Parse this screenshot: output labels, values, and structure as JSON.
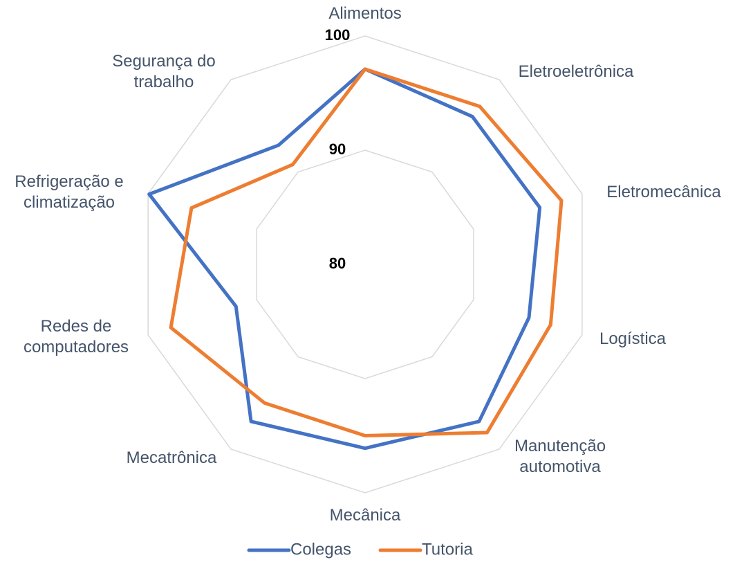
{
  "chart_data": {
    "type": "radar",
    "categories": [
      "Alimentos",
      "Eletroeletrônica",
      "Eletromecânica",
      "Logística",
      "Manutenção automotiva",
      "Mecânica",
      "Mecatrônica",
      "Redes de computadores",
      "Refrigeração e climatização",
      "Segurança do trabalho"
    ],
    "series": [
      {
        "name": "Colegas",
        "color": "#4472c4",
        "values": [
          97.1,
          96.0,
          96.1,
          95.1,
          97.0,
          96.1,
          97.0,
          91.9,
          99.9,
          92.9
        ]
      },
      {
        "name": "Tutoria",
        "color": "#ed7d31",
        "values": [
          97.1,
          97.1,
          98.1,
          97.1,
          98.2,
          95.0,
          95.0,
          97.9,
          96.0,
          90.8
        ]
      }
    ],
    "ylim": [
      80,
      100
    ],
    "yticks": [
      80,
      90,
      100
    ],
    "grid": true,
    "legend": "bottom"
  }
}
